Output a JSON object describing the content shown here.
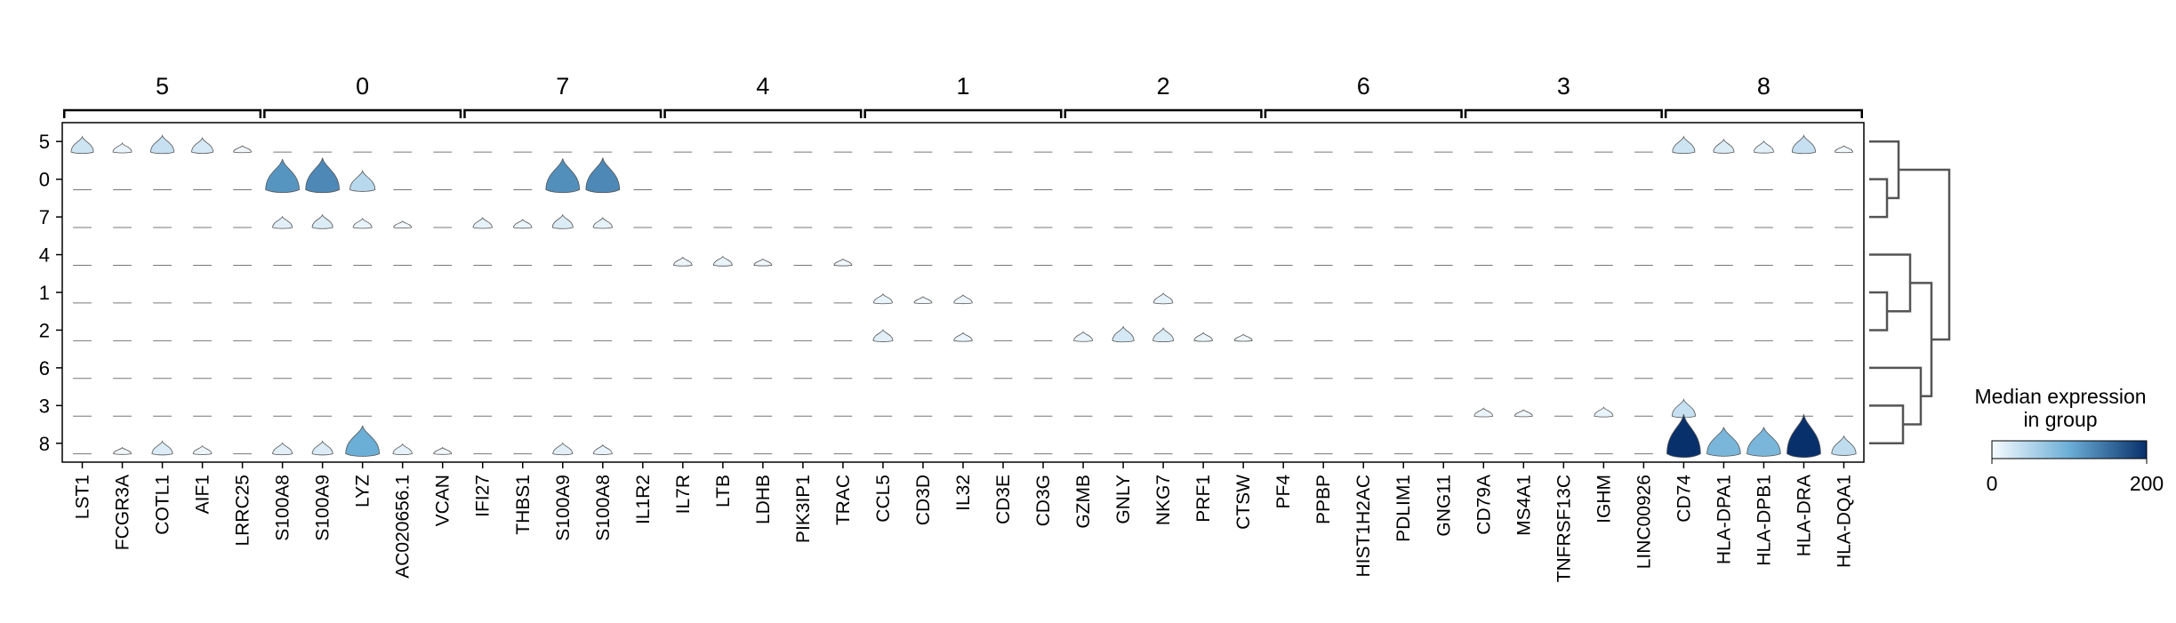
{
  "chart_data": {
    "type": "stacked-violin",
    "rows": [
      "5",
      "0",
      "7",
      "4",
      "1",
      "2",
      "6",
      "3",
      "8"
    ],
    "groups": [
      {
        "label": "5",
        "genes": [
          "LST1",
          "FCGR3A",
          "COTL1",
          "AIF1",
          "LRRC25"
        ]
      },
      {
        "label": "0",
        "genes": [
          "S100A8",
          "S100A9",
          "LYZ",
          "AC020656.1",
          "VCAN"
        ]
      },
      {
        "label": "7",
        "genes": [
          "IFI27",
          "THBS1",
          "S100A9",
          "S100A8",
          "IL1R2"
        ]
      },
      {
        "label": "4",
        "genes": [
          "IL7R",
          "LTB",
          "LDHB",
          "PIK3IP1",
          "TRAC"
        ]
      },
      {
        "label": "1",
        "genes": [
          "CCL5",
          "CD3D",
          "IL32",
          "CD3E",
          "CD3G"
        ]
      },
      {
        "label": "2",
        "genes": [
          "GZMB",
          "GNLY",
          "NKG7",
          "PRF1",
          "CTSW"
        ]
      },
      {
        "label": "6",
        "genes": [
          "PF4",
          "PPBP",
          "HIST1H2AC",
          "PDLIM1",
          "GNG11"
        ]
      },
      {
        "label": "3",
        "genes": [
          "CD79A",
          "MS4A1",
          "TNFRSF13C",
          "IGHM",
          "LINC00926"
        ]
      },
      {
        "label": "8",
        "genes": [
          "CD74",
          "HLA-DPA1",
          "HLA-DPB1",
          "HLA-DRA",
          "HLA-DQA1"
        ]
      }
    ],
    "median_expression": [
      [
        30,
        10,
        35,
        25,
        5,
        0,
        0,
        0,
        0,
        0,
        0,
        0,
        0,
        0,
        0,
        0,
        0,
        0,
        0,
        0,
        0,
        0,
        0,
        0,
        0,
        0,
        0,
        0,
        0,
        0,
        0,
        0,
        0,
        0,
        0,
        0,
        0,
        0,
        0,
        0,
        30,
        20,
        15,
        35,
        5
      ],
      [
        0,
        0,
        0,
        0,
        0,
        120,
        130,
        45,
        0,
        0,
        0,
        0,
        125,
        130,
        0,
        0,
        0,
        0,
        0,
        0,
        0,
        0,
        0,
        0,
        0,
        0,
        0,
        0,
        0,
        0,
        0,
        0,
        0,
        0,
        0,
        0,
        0,
        0,
        0,
        0,
        0,
        0,
        0,
        0,
        0
      ],
      [
        0,
        0,
        0,
        0,
        0,
        15,
        20,
        10,
        5,
        0,
        12,
        8,
        20,
        12,
        0,
        0,
        0,
        0,
        0,
        0,
        0,
        0,
        0,
        0,
        0,
        0,
        0,
        0,
        0,
        0,
        0,
        0,
        0,
        0,
        0,
        0,
        0,
        0,
        0,
        0,
        0,
        0,
        0,
        0,
        0
      ],
      [
        0,
        0,
        0,
        0,
        0,
        0,
        0,
        0,
        0,
        0,
        0,
        0,
        0,
        0,
        0,
        8,
        10,
        5,
        0,
        5,
        0,
        0,
        0,
        0,
        0,
        0,
        0,
        0,
        0,
        0,
        0,
        0,
        0,
        0,
        0,
        0,
        0,
        0,
        0,
        0,
        0,
        0,
        0,
        0,
        0
      ],
      [
        0,
        0,
        0,
        0,
        0,
        0,
        0,
        0,
        0,
        0,
        0,
        0,
        0,
        0,
        0,
        0,
        0,
        0,
        0,
        0,
        10,
        5,
        8,
        0,
        0,
        0,
        0,
        12,
        0,
        0,
        0,
        0,
        0,
        0,
        0,
        0,
        0,
        0,
        0,
        0,
        0,
        0,
        0,
        0,
        0
      ],
      [
        0,
        0,
        0,
        0,
        0,
        0,
        0,
        0,
        0,
        0,
        0,
        0,
        0,
        0,
        0,
        0,
        0,
        0,
        0,
        0,
        15,
        0,
        8,
        0,
        0,
        10,
        25,
        20,
        8,
        5,
        0,
        0,
        0,
        0,
        0,
        0,
        0,
        0,
        0,
        0,
        0,
        0,
        0,
        0,
        0
      ],
      [
        0,
        0,
        0,
        0,
        0,
        0,
        0,
        0,
        0,
        0,
        0,
        0,
        0,
        0,
        0,
        0,
        0,
        0,
        0,
        0,
        0,
        0,
        0,
        0,
        0,
        0,
        0,
        0,
        0,
        0,
        0,
        0,
        0,
        0,
        0,
        0,
        0,
        0,
        0,
        0,
        0,
        0,
        0,
        0,
        0
      ],
      [
        0,
        0,
        0,
        0,
        0,
        0,
        0,
        0,
        0,
        0,
        0,
        0,
        0,
        0,
        0,
        0,
        0,
        0,
        0,
        0,
        0,
        0,
        0,
        0,
        0,
        0,
        0,
        0,
        0,
        0,
        0,
        0,
        0,
        0,
        0,
        8,
        5,
        0,
        10,
        0,
        35,
        0,
        0,
        0,
        0
      ],
      [
        0,
        5,
        20,
        8,
        0,
        15,
        20,
        100,
        12,
        5,
        0,
        0,
        15,
        10,
        0,
        0,
        0,
        0,
        0,
        0,
        0,
        0,
        0,
        0,
        0,
        0,
        0,
        0,
        0,
        0,
        0,
        0,
        0,
        0,
        0,
        0,
        0,
        0,
        0,
        0,
        200,
        90,
        90,
        200,
        40
      ]
    ],
    "colorbar": {
      "title_line1": "Median expression",
      "title_line2": "in group",
      "min_label": "0",
      "max_label": "200",
      "min": 0,
      "max": 200,
      "colors": [
        "#f7fbff",
        "#6baed6",
        "#08306b"
      ]
    },
    "dendrogram": "right",
    "grid": false
  }
}
